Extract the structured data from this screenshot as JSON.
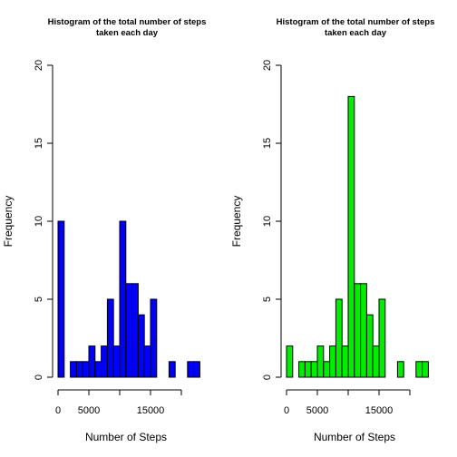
{
  "chart_data": [
    {
      "type": "bar",
      "title_line1": "Histogram of the total number of steps",
      "title_line2": "taken each day",
      "xlabel": "Number of Steps",
      "ylabel": "Frequency",
      "color": "#0000ff",
      "bin_width": 1000,
      "bin_start": 0,
      "values": [
        10,
        0,
        1,
        1,
        1,
        2,
        1,
        2,
        5,
        2,
        10,
        6,
        6,
        4,
        2,
        5,
        0,
        0,
        1,
        0,
        0,
        1,
        1
      ],
      "ylim": [
        0,
        20
      ],
      "yticks": [
        0,
        5,
        10,
        15,
        20
      ],
      "xticks": [
        0,
        5000,
        15000
      ],
      "xlim": [
        0,
        20000
      ]
    },
    {
      "type": "bar",
      "title_line1": "Histogram of the total number of steps",
      "title_line2": "taken each day",
      "xlabel": "Number of Steps",
      "ylabel": "Frequency",
      "color": "#00ee00",
      "bin_width": 1000,
      "bin_start": 0,
      "values": [
        2,
        0,
        1,
        1,
        1,
        2,
        1,
        2,
        5,
        2,
        18,
        6,
        6,
        4,
        2,
        5,
        0,
        0,
        1,
        0,
        0,
        1,
        1
      ],
      "ylim": [
        0,
        20
      ],
      "yticks": [
        0,
        5,
        10,
        15,
        20
      ],
      "xticks": [
        0,
        5000,
        15000
      ],
      "xlim": [
        0,
        20000
      ]
    }
  ]
}
